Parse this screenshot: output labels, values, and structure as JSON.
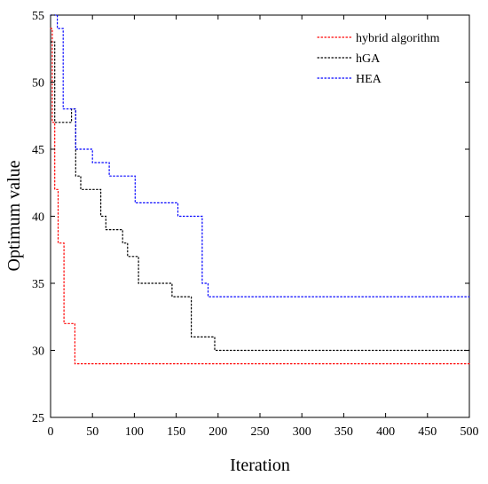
{
  "chart_data": {
    "type": "line",
    "title": "",
    "xlabel": "Iteration",
    "ylabel": "Optimum value",
    "xlim": [
      0,
      500
    ],
    "ylim": [
      25,
      55
    ],
    "xticks": [
      0,
      50,
      100,
      150,
      200,
      250,
      300,
      350,
      400,
      450,
      500
    ],
    "yticks": [
      25,
      30,
      35,
      40,
      45,
      50,
      55
    ],
    "grid": false,
    "legend_position": "top-right",
    "series": [
      {
        "name": "hybrid algorithm",
        "color": "#ff0000",
        "style": "dotted",
        "x": [
          0,
          2,
          2,
          5,
          5,
          9,
          9,
          16,
          16,
          20,
          20,
          29,
          29,
          500
        ],
        "y": [
          54,
          54,
          47,
          47,
          42,
          42,
          38,
          38,
          32,
          32,
          32,
          32,
          29,
          29
        ]
      },
      {
        "name": "hGA",
        "color": "#000000",
        "style": "dotted",
        "x": [
          0,
          5,
          5,
          25,
          25,
          30,
          30,
          36,
          36,
          60,
          60,
          66,
          66,
          86,
          86,
          92,
          92,
          105,
          105,
          145,
          145,
          168,
          168,
          196,
          196,
          500
        ],
        "y": [
          53,
          53,
          47,
          47,
          48,
          48,
          43,
          43,
          42,
          42,
          40,
          40,
          39,
          39,
          38,
          38,
          37,
          37,
          35,
          35,
          34,
          34,
          31,
          31,
          30,
          30
        ]
      },
      {
        "name": "HEA",
        "color": "#0000ff",
        "style": "dotted",
        "x": [
          0,
          8,
          8,
          15,
          15,
          30,
          30,
          50,
          50,
          70,
          70,
          101,
          101,
          152,
          152,
          181,
          181,
          188,
          188,
          500
        ],
        "y": [
          55,
          55,
          54,
          54,
          48,
          48,
          45,
          45,
          44,
          44,
          43,
          43,
          41,
          41,
          40,
          40,
          35,
          35,
          34,
          34
        ]
      }
    ]
  }
}
